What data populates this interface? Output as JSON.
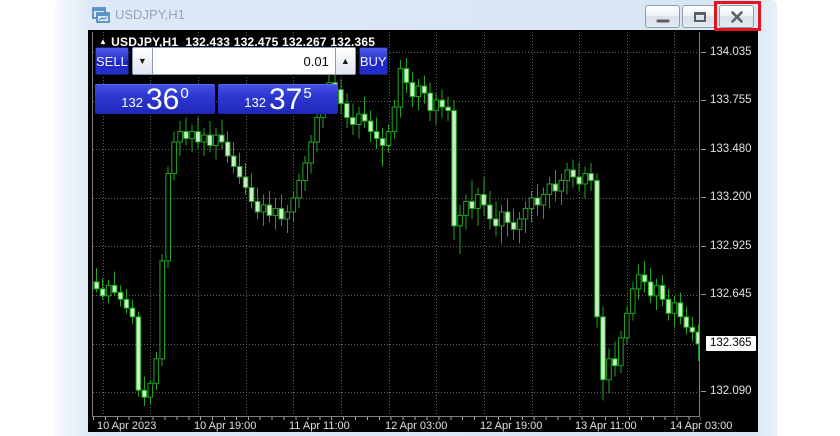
{
  "window": {
    "title": "USDJPY,H1",
    "controls": {
      "minimize": "minimize",
      "maximize": "restore",
      "close": "close"
    },
    "close_highlight_color": "#e1151d"
  },
  "chart": {
    "info": {
      "symbol": "USDJPY,H1",
      "open": "132.433",
      "high": "132.475",
      "low": "132.267",
      "close": "132.365",
      "arrow_icon": "▲"
    },
    "panel": {
      "sell_label": "SELL",
      "buy_label": "BUY",
      "volume": "0.01",
      "down_arrow_icon": "▼",
      "up_arrow_icon": "▲",
      "sell_price": {
        "prefix": "132",
        "big": "36",
        "sup": "0"
      },
      "buy_price": {
        "prefix": "132",
        "big": "37",
        "sup": "5"
      },
      "panel_blue": "#2a35cd"
    },
    "axes": {
      "price_labels": [
        "134.035",
        "133.755",
        "133.480",
        "133.200",
        "132.925",
        "132.645",
        "132.365",
        "132.090"
      ],
      "highlighted_price": "132.365",
      "time_labels": [
        "10 Apr 2023",
        "10 Apr 19:00",
        "11 Apr 11:00",
        "12 Apr 03:00",
        "12 Apr 19:00",
        "13 Apr 11:00",
        "14 Apr 03:00"
      ]
    },
    "colors": {
      "background": "#000000",
      "candle_outline": "#21a321",
      "bear_fill": "#c8f0c2",
      "bull_fill": "#000000",
      "grid": "#5f5f5f",
      "highlight_red": "#e1151d"
    }
  },
  "chart_data": {
    "type": "candlestick",
    "symbol": "USDJPY",
    "timeframe": "H1",
    "title": "USDJPY,H1",
    "start": "10 Apr 2023 01:00",
    "hours_per_candle": 1,
    "ylim": [
      131.96,
      134.15
    ],
    "y_gridlines": [
      134.035,
      133.755,
      133.48,
      133.2,
      132.925,
      132.645,
      132.365,
      132.09
    ],
    "x_grid_hours_step": 8,
    "x_label_hours": [
      19,
      35,
      51,
      67,
      83,
      99
    ],
    "current_bid": 132.36,
    "current_ask": 132.375,
    "ohlc": [
      [
        132.68,
        132.76,
        132.6,
        132.72
      ],
      [
        132.72,
        132.8,
        132.66,
        132.68
      ],
      [
        132.68,
        132.74,
        132.62,
        132.64
      ],
      [
        132.64,
        132.73,
        132.6,
        132.7
      ],
      [
        132.7,
        132.78,
        132.64,
        132.66
      ],
      [
        132.66,
        132.7,
        132.58,
        132.62
      ],
      [
        132.62,
        132.68,
        132.54,
        132.57
      ],
      [
        132.57,
        132.62,
        132.48,
        132.52
      ],
      [
        132.52,
        132.55,
        132.06,
        132.1
      ],
      [
        132.1,
        132.18,
        132.01,
        132.06
      ],
      [
        132.06,
        132.16,
        132.02,
        132.14
      ],
      [
        132.14,
        132.32,
        132.1,
        132.28
      ],
      [
        132.28,
        132.88,
        132.24,
        132.84
      ],
      [
        132.84,
        133.38,
        132.8,
        133.34
      ],
      [
        133.34,
        133.58,
        133.3,
        133.52
      ],
      [
        133.52,
        133.64,
        133.44,
        133.58
      ],
      [
        133.58,
        133.66,
        133.5,
        133.54
      ],
      [
        133.54,
        133.62,
        133.46,
        133.58
      ],
      [
        133.58,
        133.66,
        133.48,
        133.52
      ],
      [
        133.52,
        133.6,
        133.44,
        133.56
      ],
      [
        133.56,
        133.64,
        133.46,
        133.5
      ],
      [
        133.5,
        133.6,
        133.42,
        133.56
      ],
      [
        133.56,
        133.65,
        133.48,
        133.52
      ],
      [
        133.52,
        133.58,
        133.4,
        133.44
      ],
      [
        133.44,
        133.52,
        133.34,
        133.38
      ],
      [
        133.38,
        133.46,
        133.28,
        133.32
      ],
      [
        133.32,
        133.4,
        133.22,
        133.26
      ],
      [
        133.26,
        133.34,
        133.14,
        133.18
      ],
      [
        133.18,
        133.26,
        133.08,
        133.12
      ],
      [
        133.12,
        133.22,
        133.04,
        133.16
      ],
      [
        133.16,
        133.24,
        133.06,
        133.1
      ],
      [
        133.1,
        133.2,
        133.02,
        133.14
      ],
      [
        133.14,
        133.22,
        133.04,
        133.08
      ],
      [
        133.08,
        133.16,
        133.0,
        133.12
      ],
      [
        133.12,
        133.24,
        133.06,
        133.2
      ],
      [
        133.2,
        133.34,
        133.14,
        133.3
      ],
      [
        133.3,
        133.44,
        133.24,
        133.4
      ],
      [
        133.4,
        133.56,
        133.34,
        133.52
      ],
      [
        133.52,
        133.7,
        133.46,
        133.66
      ],
      [
        133.66,
        133.82,
        133.6,
        133.78
      ],
      [
        133.78,
        133.92,
        133.7,
        133.86
      ],
      [
        133.86,
        133.94,
        133.76,
        133.82
      ],
      [
        133.82,
        133.88,
        133.68,
        133.74
      ],
      [
        133.74,
        133.8,
        133.6,
        133.66
      ],
      [
        133.66,
        133.74,
        133.56,
        133.62
      ],
      [
        133.62,
        133.72,
        133.54,
        133.68
      ],
      [
        133.68,
        133.78,
        133.6,
        133.64
      ],
      [
        133.64,
        133.7,
        133.52,
        133.58
      ],
      [
        133.58,
        133.66,
        133.48,
        133.54
      ],
      [
        133.54,
        133.6,
        133.38,
        133.5
      ],
      [
        133.5,
        133.62,
        133.46,
        133.58
      ],
      [
        133.58,
        133.76,
        133.54,
        133.72
      ],
      [
        133.72,
        133.99,
        133.66,
        133.94
      ],
      [
        133.94,
        134.0,
        133.8,
        133.86
      ],
      [
        133.86,
        133.92,
        133.72,
        133.78
      ],
      [
        133.78,
        133.88,
        133.7,
        133.84
      ],
      [
        133.84,
        133.9,
        133.74,
        133.8
      ],
      [
        133.8,
        133.86,
        133.64,
        133.7
      ],
      [
        133.7,
        133.8,
        133.62,
        133.76
      ],
      [
        133.76,
        133.82,
        133.66,
        133.72
      ],
      [
        133.72,
        133.78,
        133.64,
        133.7
      ],
      [
        133.7,
        133.76,
        132.96,
        133.04
      ],
      [
        133.04,
        133.16,
        132.88,
        133.1
      ],
      [
        133.1,
        133.22,
        133.02,
        133.18
      ],
      [
        133.18,
        133.3,
        133.08,
        133.14
      ],
      [
        133.14,
        133.26,
        133.04,
        133.22
      ],
      [
        133.22,
        133.32,
        133.1,
        133.16
      ],
      [
        133.16,
        133.24,
        133.02,
        133.08
      ],
      [
        133.08,
        133.18,
        132.98,
        133.04
      ],
      [
        133.04,
        133.16,
        132.94,
        133.12
      ],
      [
        133.12,
        133.2,
        132.98,
        133.06
      ],
      [
        133.06,
        133.14,
        132.96,
        133.02
      ],
      [
        133.02,
        133.12,
        132.94,
        133.08
      ],
      [
        133.08,
        133.18,
        133.0,
        133.14
      ],
      [
        133.14,
        133.24,
        133.06,
        133.2
      ],
      [
        133.2,
        133.28,
        133.1,
        133.16
      ],
      [
        133.16,
        133.26,
        133.08,
        133.22
      ],
      [
        133.22,
        133.32,
        133.14,
        133.28
      ],
      [
        133.28,
        133.36,
        133.18,
        133.24
      ],
      [
        133.24,
        133.34,
        133.16,
        133.3
      ],
      [
        133.3,
        133.4,
        133.22,
        133.36
      ],
      [
        133.36,
        133.42,
        133.26,
        133.32
      ],
      [
        133.32,
        133.4,
        133.24,
        133.28
      ],
      [
        133.28,
        133.38,
        133.2,
        133.34
      ],
      [
        133.34,
        133.4,
        133.24,
        133.3
      ],
      [
        133.3,
        133.34,
        132.46,
        132.52
      ],
      [
        132.52,
        132.58,
        132.04,
        132.16
      ],
      [
        132.16,
        132.34,
        132.08,
        132.28
      ],
      [
        132.28,
        132.38,
        132.18,
        132.24
      ],
      [
        132.24,
        132.44,
        132.2,
        132.4
      ],
      [
        132.4,
        132.58,
        132.36,
        132.54
      ],
      [
        132.54,
        132.72,
        132.5,
        132.68
      ],
      [
        132.68,
        132.82,
        132.62,
        132.76
      ],
      [
        132.76,
        132.84,
        132.66,
        132.72
      ],
      [
        132.72,
        132.8,
        132.6,
        132.64
      ],
      [
        132.64,
        132.74,
        132.56,
        132.7
      ],
      [
        132.7,
        132.76,
        132.58,
        132.62
      ],
      [
        132.62,
        132.68,
        132.5,
        132.54
      ],
      [
        132.54,
        132.64,
        132.46,
        132.6
      ],
      [
        132.6,
        132.66,
        132.48,
        132.52
      ],
      [
        132.52,
        132.58,
        132.42,
        132.46
      ],
      [
        132.46,
        132.52,
        132.38,
        132.433
      ],
      [
        132.433,
        132.475,
        132.267,
        132.365
      ]
    ]
  }
}
